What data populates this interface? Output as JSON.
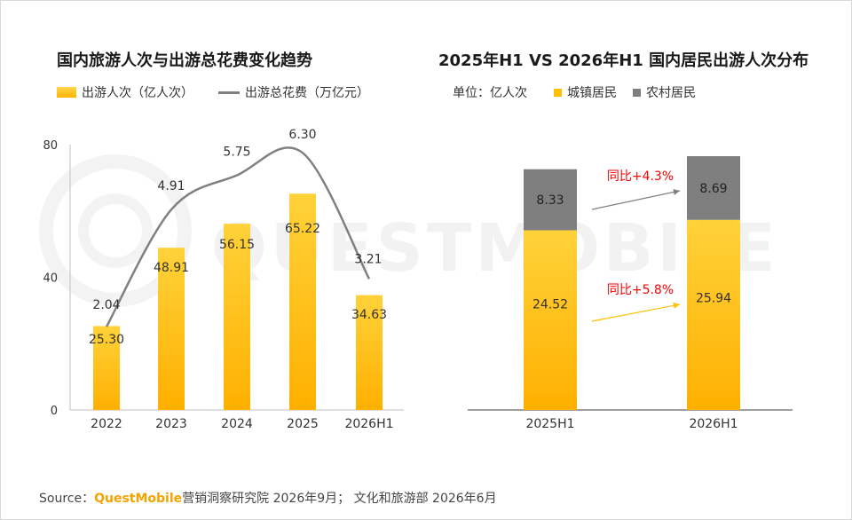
{
  "colors": {
    "accent": "#FFC000",
    "urban": "#FFC000",
    "rural": "#7F7F7F",
    "spend_line": "#808080",
    "annotation_red": "#FF0000",
    "brand": "#F5A300",
    "watermark": "#F2F2F2"
  },
  "watermark": "QUESTMOBILE",
  "footer": {
    "label": "Source：",
    "brand": "QuestMobile",
    "text": "营销洞察研究院 2026年9月； 文化和旅游部 2026年6月"
  },
  "chart_data": [
    {
      "type": "bar",
      "title": "国内旅游人次与出游总花费变化趋势",
      "legend": {
        "bar": "出游人次（亿人次）",
        "line": "出游总花费（万亿元）"
      },
      "categories": [
        "2022",
        "2023",
        "2024",
        "2025",
        "2026H1"
      ],
      "ylim": [
        0,
        80
      ],
      "yticks": [
        "0",
        "40",
        "80"
      ],
      "series": [
        {
          "name": "出游人次（亿人次）",
          "kind": "bar",
          "values": [
            25.3,
            48.91,
            56.15,
            65.22,
            34.63
          ],
          "labels": [
            "25.30",
            "48.91",
            "56.15",
            "65.22",
            "34.63"
          ]
        },
        {
          "name": "出游总花费（万亿元）",
          "kind": "line",
          "values": [
            2.04,
            4.91,
            5.75,
            6.3,
            3.21
          ],
          "labels": [
            "2.04",
            "4.91",
            "5.75",
            "6.30",
            "3.21"
          ],
          "ylim": [
            0,
            7
          ]
        }
      ]
    },
    {
      "type": "bar",
      "stacked": true,
      "title": "2025年H1 VS 2026年H1 国内居民出游人次分布",
      "unit": "单位：亿人次",
      "legend": [
        "城镇居民",
        "农村居民"
      ],
      "categories": [
        "2025H1",
        "2026H1"
      ],
      "series": [
        {
          "name": "城镇居民",
          "values": [
            24.52,
            25.94
          ],
          "labels": [
            "24.52",
            "25.94"
          ]
        },
        {
          "name": "农村居民",
          "values": [
            8.33,
            8.69
          ],
          "labels": [
            "8.33",
            "8.69"
          ]
        }
      ],
      "annotations": [
        {
          "text": "同比+4.3%",
          "series": "农村居民"
        },
        {
          "text": "同比+5.8%",
          "series": "城镇居民"
        }
      ]
    }
  ]
}
